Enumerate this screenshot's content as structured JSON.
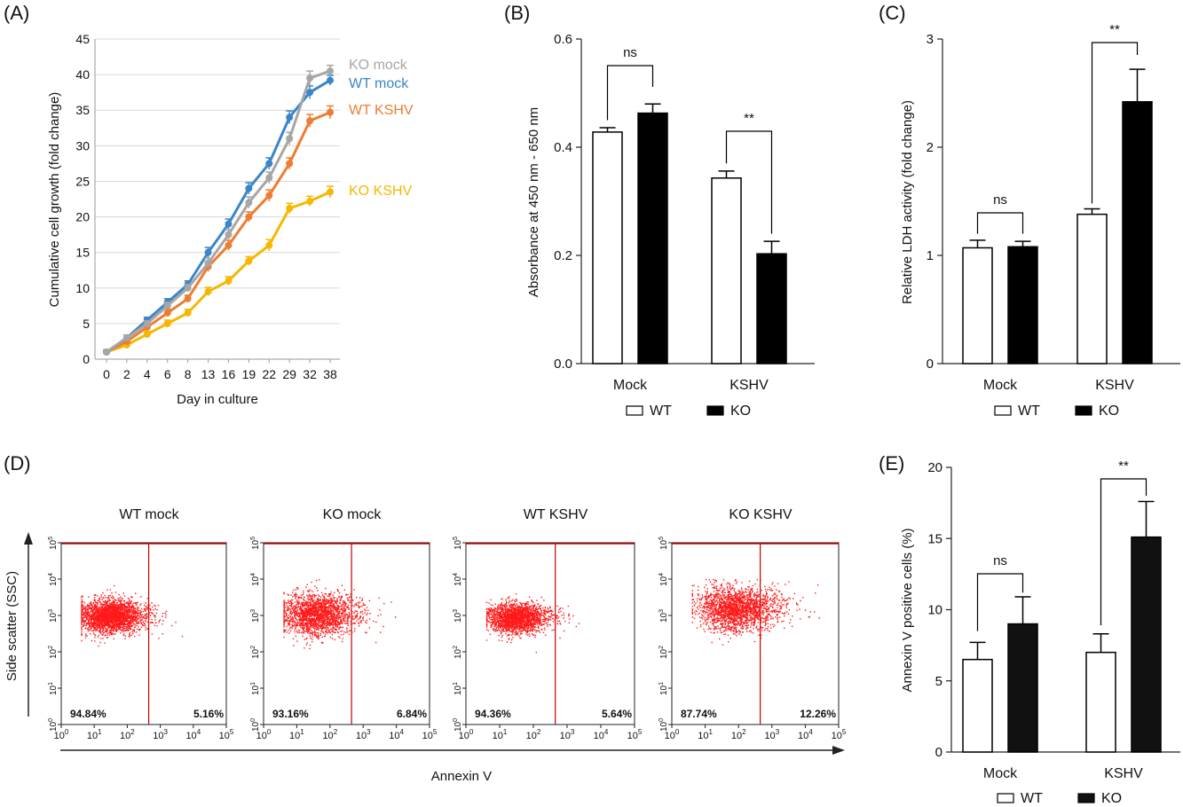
{
  "panels": {
    "A": "(A)",
    "B": "(B)",
    "C": "(C)",
    "D": "(D)",
    "E": "(E)"
  },
  "chart_data": [
    {
      "id": "A",
      "type": "line",
      "xlabel": "Day in culture",
      "ylabel": "Cumulative cell growth (fold change)",
      "categories": [
        "0",
        "2",
        "4",
        "6",
        "8",
        "13",
        "16",
        "19",
        "22",
        "29",
        "32",
        "38"
      ],
      "x_ticks": [
        "0",
        "2",
        "4",
        "6",
        "8",
        "13",
        "16",
        "19",
        "22",
        "29",
        "32",
        "38"
      ],
      "ylim": [
        0,
        45
      ],
      "y_ticks": [
        0,
        5,
        10,
        15,
        20,
        25,
        30,
        35,
        40,
        45
      ],
      "grid": true,
      "series": [
        {
          "name": "KO mock",
          "color": "#a6a6a6",
          "values": [
            1,
            3,
            5,
            7.5,
            10,
            13.5,
            17.5,
            22,
            25.5,
            31,
            39.5,
            40.5
          ],
          "err": [
            0.3,
            0.4,
            0.4,
            0.5,
            0.5,
            0.7,
            0.7,
            0.8,
            0.8,
            0.9,
            1.0,
            0.8
          ]
        },
        {
          "name": "WT mock",
          "color": "#3a86c8",
          "values": [
            1,
            3,
            5.5,
            8,
            10.5,
            15,
            19,
            24,
            27.5,
            34,
            37.5,
            39.2
          ],
          "err": [
            0.3,
            0.4,
            0.4,
            0.5,
            0.5,
            0.7,
            0.7,
            0.8,
            0.8,
            0.9,
            0.9,
            0.7
          ]
        },
        {
          "name": "WT KSHV",
          "color": "#ed7d31",
          "values": [
            1,
            2.5,
            4.5,
            6.5,
            8.5,
            13,
            16,
            20,
            23,
            27.5,
            33.5,
            34.7
          ],
          "err": [
            0.3,
            0.4,
            0.4,
            0.5,
            0.5,
            0.7,
            0.7,
            0.7,
            0.8,
            0.8,
            0.9,
            0.9
          ]
        },
        {
          "name": "KO KSHV",
          "color": "#f5b800",
          "values": [
            1,
            2,
            3.5,
            5,
            6.5,
            9.5,
            11,
            13.8,
            16,
            21.2,
            22.2,
            23.5
          ],
          "err": [
            0.2,
            0.3,
            0.4,
            0.5,
            0.5,
            0.6,
            0.6,
            0.6,
            0.8,
            0.7,
            0.7,
            0.8
          ]
        }
      ]
    },
    {
      "id": "B",
      "type": "bar",
      "ylabel": "Absorbance at 450 nm - 650 nm",
      "categories": [
        "Mock",
        "KSHV"
      ],
      "ylim": [
        0,
        0.6
      ],
      "y_ticks": [
        "0.0",
        "0.2",
        "0.4",
        "0.6"
      ],
      "series": [
        {
          "name": "WT",
          "fill": "#ffffff",
          "values": [
            0.428,
            0.343
          ],
          "err": [
            0.008,
            0.013
          ]
        },
        {
          "name": "KO",
          "fill": "#000000",
          "values": [
            0.463,
            0.203
          ],
          "err": [
            0.017,
            0.023
          ]
        }
      ],
      "significance": [
        "ns",
        "**"
      ],
      "legend": [
        "WT",
        "KO"
      ]
    },
    {
      "id": "C",
      "type": "bar",
      "ylabel": "Relative LDH activity (fold change)",
      "categories": [
        "Mock",
        "KSHV"
      ],
      "ylim": [
        0,
        3
      ],
      "y_ticks": [
        "0",
        "1",
        "2",
        "3"
      ],
      "series": [
        {
          "name": "WT",
          "fill": "#ffffff",
          "values": [
            1.07,
            1.38
          ],
          "err": [
            0.07,
            0.05
          ]
        },
        {
          "name": "KO",
          "fill": "#000000",
          "values": [
            1.08,
            2.42
          ],
          "err": [
            0.05,
            0.3
          ]
        }
      ],
      "significance": [
        "ns",
        "**"
      ],
      "legend": [
        "WT",
        "KO"
      ]
    },
    {
      "id": "D",
      "type": "scatter",
      "xlabel": "Annexin V",
      "ylabel": "Side scatter (SSC)",
      "plots": [
        {
          "title": "WT mock",
          "left_pct": "94.84%",
          "right_pct": "5.16%",
          "cx": 1.45,
          "cy": 3.0,
          "sx": 0.45,
          "sy": 0.22,
          "right_frac": 0.0516
        },
        {
          "title": "KO mock",
          "left_pct": "93.16%",
          "right_pct": "6.84%",
          "cx": 1.55,
          "cy": 3.05,
          "sx": 0.55,
          "sy": 0.28,
          "right_frac": 0.0684
        },
        {
          "title": "WT KSHV",
          "left_pct": "94.36%",
          "right_pct": "5.64%",
          "cx": 1.45,
          "cy": 2.95,
          "sx": 0.4,
          "sy": 0.2,
          "right_frac": 0.0564
        },
        {
          "title": "KO KSHV",
          "left_pct": "87.74%",
          "right_pct": "12.26%",
          "cx": 1.85,
          "cy": 3.2,
          "sx": 0.55,
          "sy": 0.3,
          "right_frac": 0.1226
        }
      ]
    },
    {
      "id": "E",
      "type": "bar",
      "ylabel": "Annexin V positive cells (%)",
      "categories": [
        "Mock",
        "KSHV"
      ],
      "ylim": [
        0,
        20
      ],
      "y_ticks": [
        "0",
        "5",
        "10",
        "15",
        "20"
      ],
      "series": [
        {
          "name": "WT",
          "fill": "#ffffff",
          "values": [
            6.5,
            7.0
          ],
          "err": [
            1.2,
            1.3
          ]
        },
        {
          "name": "KO",
          "fill": "#111111",
          "values": [
            9.0,
            15.1
          ],
          "err": [
            1.9,
            2.5
          ]
        }
      ],
      "significance": [
        "ns",
        "**"
      ],
      "legend": [
        "WT",
        "KO"
      ]
    }
  ]
}
